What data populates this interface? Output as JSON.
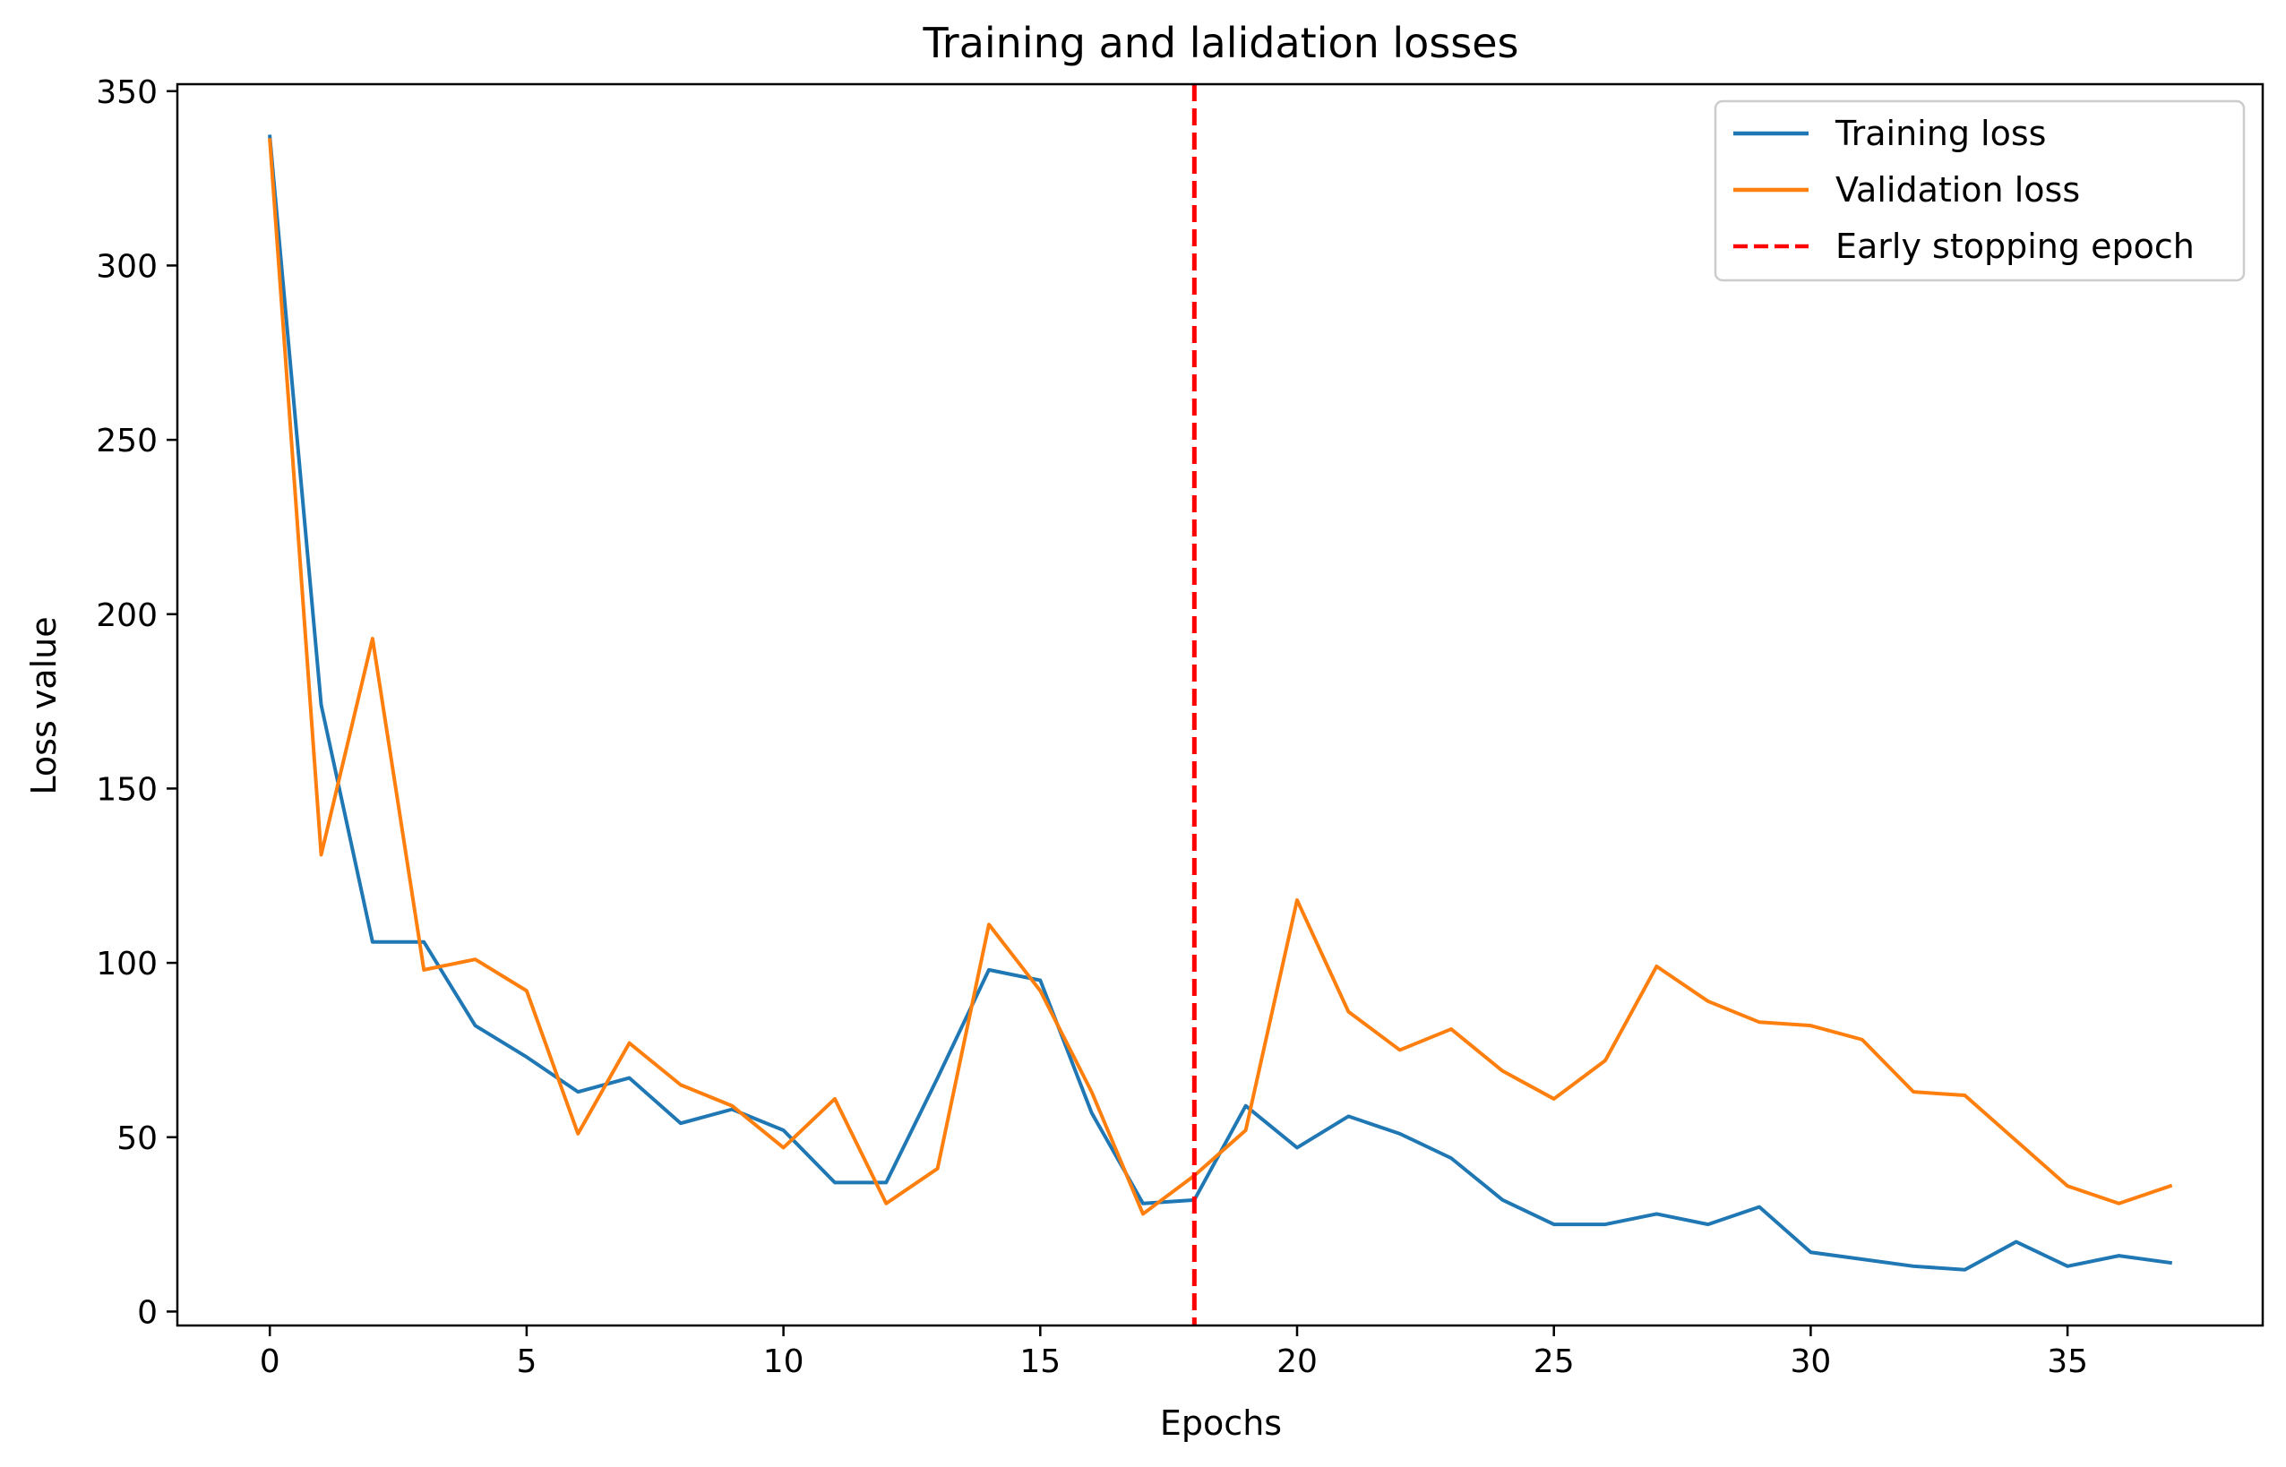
{
  "chart_data": {
    "type": "line",
    "title": "Training and lalidation losses",
    "xlabel": "Epochs",
    "ylabel": "Loss value",
    "xlim": [
      -1.8,
      38.8
    ],
    "ylim": [
      -4,
      352
    ],
    "xticks": [
      0,
      5,
      10,
      15,
      20,
      25,
      30,
      35
    ],
    "yticks": [
      0,
      50,
      100,
      150,
      200,
      250,
      300,
      350
    ],
    "grid": false,
    "legend_position": "top-right",
    "x": [
      0,
      1,
      2,
      3,
      4,
      5,
      6,
      7,
      8,
      9,
      10,
      11,
      12,
      13,
      14,
      15,
      16,
      17,
      18,
      19,
      20,
      21,
      22,
      23,
      24,
      25,
      26,
      27,
      28,
      29,
      30,
      31,
      32,
      33,
      34,
      35,
      36,
      37
    ],
    "series": [
      {
        "name": "Training loss",
        "color": "#1f77b4",
        "values": [
          337,
          174,
          106,
          106,
          82,
          73,
          63,
          67,
          54,
          58,
          52,
          37,
          37,
          67,
          98,
          95,
          57,
          31,
          32,
          59,
          47,
          56,
          51,
          44,
          32,
          25,
          25,
          28,
          25,
          30,
          17,
          15,
          13,
          12,
          20,
          13,
          16,
          14
        ]
      },
      {
        "name": "Validation loss",
        "color": "#ff7f0e",
        "values": [
          336,
          131,
          193,
          98,
          101,
          92,
          51,
          77,
          65,
          59,
          47,
          61,
          31,
          41,
          111,
          92,
          63,
          28,
          39,
          52,
          118,
          86,
          75,
          81,
          69,
          61,
          72,
          99,
          89,
          83,
          82,
          78,
          63,
          62,
          49,
          36,
          31,
          36
        ]
      }
    ],
    "vline": {
      "name": "Early stopping epoch",
      "x": 18,
      "color": "#ff0000",
      "style": "dashed"
    }
  }
}
